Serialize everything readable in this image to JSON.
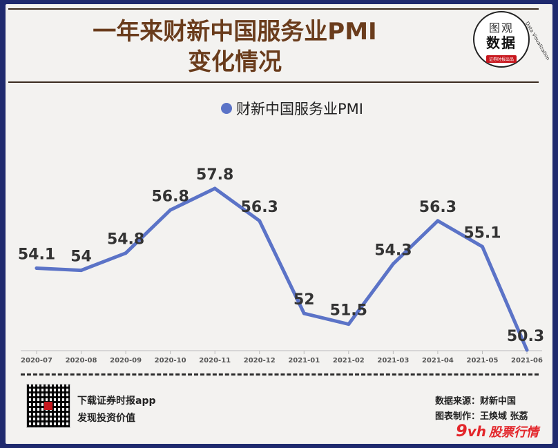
{
  "header": {
    "title_line1": "一年来财新中国服务业PMI",
    "title_line2": "变化情况"
  },
  "logo": {
    "top": "图观",
    "main": "数据",
    "tag": "证券时报出品",
    "arc": "Data Visualization"
  },
  "legend": {
    "label": "财新中国服务业PMI"
  },
  "footer": {
    "app_line1": "下载证券时报app",
    "app_line2": "发现投资价值",
    "source": "数据来源：财新中国",
    "maker": "图表制作：王焕域 张荔",
    "watermark_num": "9",
    "watermark_vh": "vh",
    "watermark_text": "股票行情"
  },
  "colors": {
    "line": "#5b73c7",
    "background": "#1f2a6e",
    "title": "#6a3c1c"
  },
  "chart_data": {
    "type": "line",
    "title": "一年来财新中国服务业PMI变化情况",
    "categories": [
      "2020-07",
      "2020-08",
      "2020-09",
      "2020-10",
      "2020-11",
      "2020-12",
      "2021-01",
      "2021-02",
      "2021-03",
      "2021-04",
      "2021-05",
      "2021-06"
    ],
    "series": [
      {
        "name": "财新中国服务业PMI",
        "values": [
          54.1,
          54,
          54.8,
          56.8,
          57.8,
          56.3,
          52,
          51.5,
          54.3,
          56.3,
          55.1,
          50.3
        ]
      }
    ],
    "data_labels": [
      "54.1",
      "54",
      "54.8",
      "56.8",
      "57.8",
      "56.3",
      "52",
      "51.5",
      "54.3",
      "56.3",
      "55.1",
      "50.3"
    ],
    "legend": "top-center",
    "grid": false
  }
}
